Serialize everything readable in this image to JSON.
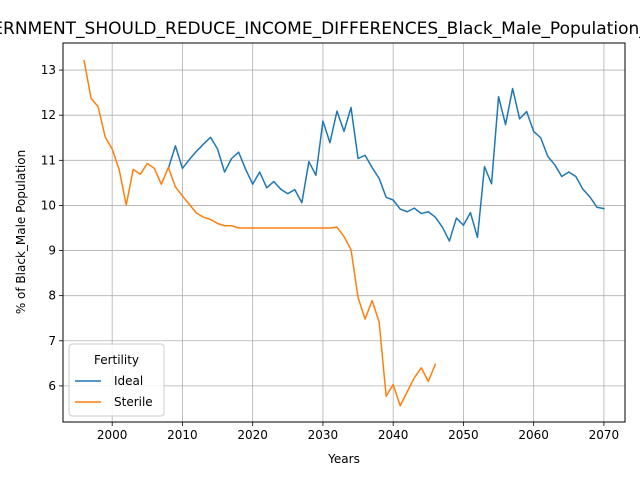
{
  "chart_data": {
    "type": "line",
    "title": "ERNMENT_SHOULD_REDUCE_INCOME_DIFFERENCES_Black_Male_Population_",
    "xlabel": "Years",
    "ylabel": "% of Black_Male Population",
    "xlim": [
      1993,
      2073
    ],
    "ylim": [
      5.2,
      13.6
    ],
    "xticks": [
      2000,
      2010,
      2020,
      2030,
      2040,
      2050,
      2060,
      2070
    ],
    "yticks": [
      6,
      7,
      8,
      9,
      10,
      11,
      12,
      13
    ],
    "grid": true,
    "legend": {
      "title": "Fertility",
      "placement": "lower-left"
    },
    "series": [
      {
        "name": "Ideal",
        "color": "#1f77b4",
        "x": [
          2008,
          2009,
          2010,
          2011,
          2012,
          2013,
          2014,
          2015,
          2016,
          2017,
          2018,
          2019,
          2020,
          2021,
          2022,
          2023,
          2024,
          2025,
          2026,
          2027,
          2028,
          2029,
          2030,
          2031,
          2032,
          2033,
          2034,
          2035,
          2036,
          2037,
          2038,
          2039,
          2040,
          2041,
          2042,
          2043,
          2044,
          2045,
          2046,
          2047,
          2048,
          2049,
          2050,
          2051,
          2052,
          2053,
          2054,
          2055,
          2056,
          2057,
          2058,
          2059,
          2060,
          2061,
          2062,
          2063,
          2064,
          2065,
          2066,
          2067,
          2068,
          2069,
          2070
        ],
        "values": [
          10.82,
          11.32,
          10.82,
          11.02,
          11.2,
          11.36,
          11.51,
          11.25,
          10.74,
          11.04,
          11.18,
          10.8,
          10.47,
          10.74,
          10.39,
          10.53,
          10.36,
          10.26,
          10.35,
          10.06,
          10.97,
          10.67,
          11.87,
          11.39,
          12.09,
          11.64,
          12.17,
          11.04,
          11.11,
          10.84,
          10.6,
          10.18,
          10.12,
          9.92,
          9.86,
          9.94,
          9.82,
          9.86,
          9.74,
          9.52,
          9.21,
          9.72,
          9.56,
          9.84,
          9.29,
          10.86,
          10.48,
          12.41,
          11.79,
          12.59,
          11.92,
          12.08,
          11.64,
          11.5,
          11.09,
          10.9,
          10.64,
          10.74,
          10.64,
          10.36,
          10.19,
          9.96,
          9.93
        ]
      },
      {
        "name": "Sterile",
        "color": "#ff7f0e",
        "x": [
          1996,
          1997,
          1998,
          1999,
          2000,
          2001,
          2002,
          2003,
          2004,
          2005,
          2006,
          2007,
          2008,
          2009,
          2010,
          2011,
          2012,
          2013,
          2014,
          2015,
          2016,
          2017,
          2018,
          2019,
          2020,
          2021,
          2022,
          2023,
          2024,
          2025,
          2026,
          2027,
          2028,
          2029,
          2030,
          2031,
          2032,
          2033,
          2034,
          2035,
          2036,
          2037,
          2038,
          2039,
          2040,
          2041,
          2042,
          2043,
          2044,
          2045,
          2046
        ],
        "values": [
          13.21,
          12.37,
          12.19,
          11.52,
          11.25,
          10.79,
          10.01,
          10.8,
          10.69,
          10.93,
          10.82,
          10.47,
          10.84,
          10.41,
          10.21,
          10.02,
          9.83,
          9.74,
          9.69,
          9.6,
          9.55,
          9.55,
          9.5,
          9.5,
          9.5,
          9.5,
          9.5,
          9.5,
          9.5,
          9.5,
          9.5,
          9.5,
          9.5,
          9.5,
          9.5,
          9.5,
          9.52,
          9.31,
          9.02,
          7.96,
          7.48,
          7.89,
          7.42,
          5.77,
          6.03,
          5.56,
          5.87,
          6.18,
          6.4,
          6.1,
          6.48
        ]
      }
    ]
  }
}
